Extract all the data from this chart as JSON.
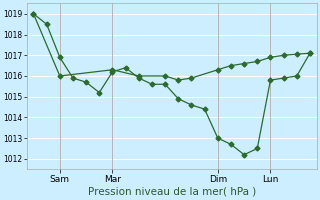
{
  "xlabel": "Pression niveau de la mer( hPa )",
  "ylim": [
    1011.5,
    1019.5
  ],
  "yticks": [
    1012,
    1013,
    1014,
    1015,
    1016,
    1017,
    1018,
    1019
  ],
  "bg_color": "#cceeff",
  "grid_color": "#ffffff",
  "line_color": "#2d6a2d",
  "xtick_labels": [
    "Sam",
    "Mar",
    "Dim",
    "Lun"
  ],
  "xtick_positions": [
    2,
    6,
    14,
    18
  ],
  "total_points": 22,
  "line1_x": [
    0,
    1,
    2,
    3,
    4,
    5,
    6,
    7,
    8,
    9,
    10,
    11,
    12,
    13,
    14,
    15,
    16,
    17,
    18,
    19,
    20,
    21
  ],
  "line1_y": [
    1019.0,
    1018.5,
    1016.9,
    1015.9,
    1015.7,
    1015.2,
    1016.2,
    1016.4,
    1015.9,
    1015.6,
    1015.6,
    1014.9,
    1014.6,
    1014.4,
    1013.0,
    1012.7,
    1012.2,
    1012.5,
    1015.8,
    1015.9,
    1016.0,
    1017.1
  ],
  "line2_x": [
    0,
    2,
    6,
    8,
    10,
    11,
    12,
    14,
    15,
    16,
    17,
    18,
    19,
    20,
    21
  ],
  "line2_y": [
    1019.0,
    1016.0,
    1016.3,
    1016.0,
    1016.0,
    1015.8,
    1015.9,
    1016.3,
    1016.5,
    1016.6,
    1016.7,
    1016.9,
    1017.0,
    1017.05,
    1017.1
  ],
  "marker_size": 2.5,
  "line_width": 0.9,
  "ytick_fontsize": 5.5,
  "xtick_fontsize": 6.5,
  "xlabel_fontsize": 7.5
}
